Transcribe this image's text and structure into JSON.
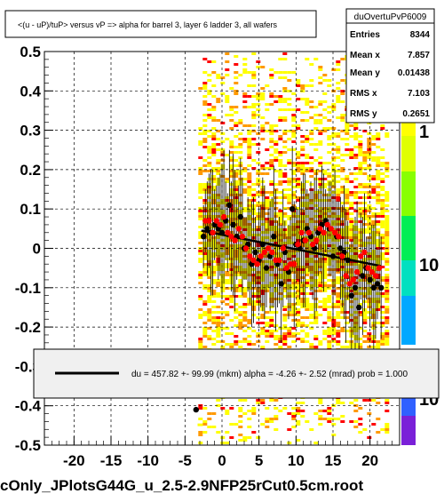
{
  "title": "<(u - uP)/tuP> versus   vP => alpha for barrel 3, layer 6 ladder 3, all wafers",
  "footer": "cOnly_JPlotsG44G_u_2.5-2.9NFP25rCut0.5cm.root",
  "stats": {
    "name": "duOvertuPvP6009",
    "rows": [
      {
        "label": "Entries",
        "value": "8344"
      },
      {
        "label": "Mean x",
        "value": "7.857"
      },
      {
        "label": "Mean y",
        "value": "0.01438"
      },
      {
        "label": "RMS x",
        "value": "7.103"
      },
      {
        "label": "RMS y",
        "value": "0.2651"
      }
    ]
  },
  "fit_legend": "du =  457.82 +- 99.99 (mkm) alpha =   -4.26 +-  2.52 (mrad) prob = 1.000",
  "palette_labels": [
    "1",
    "10",
    "10"
  ],
  "colors": {
    "black_points": "#000000",
    "red_points": "#ff0000",
    "fit_line": "#000000",
    "heat_low": "#ffff00",
    "heat_mid": "#ff9900",
    "heat_high": "#ff0000"
  },
  "chart_data": {
    "type": "scatter",
    "title": "<(u - uP)/tuP> versus   vP => alpha for barrel 3, layer 6 ladder 3, all wafers",
    "xlim": [
      -24,
      24
    ],
    "ylim": [
      -0.5,
      0.5
    ],
    "x_ticks": [
      "-20",
      "-15",
      "-10",
      "-5",
      "0",
      "5",
      "10",
      "15",
      "20"
    ],
    "y_ticks": [
      "0.5",
      "0.4",
      "0.3",
      "0.2",
      "0.1",
      "0",
      "-0.1",
      "-0.2",
      "-0.3",
      "-0.4",
      "-0.5"
    ],
    "fit_line": {
      "x": [
        -2.8,
        21.5
      ],
      "y": [
        0.045,
        -0.045
      ]
    },
    "series": [
      {
        "color": "black",
        "x": [
          -2.5,
          -2.0,
          -1.5,
          -1.0,
          -0.5,
          0.0,
          0.5,
          1.0,
          1.5,
          2.0,
          2.5,
          3.0,
          3.5,
          4.0,
          4.5,
          5.0,
          5.5,
          6.0,
          6.5,
          7.0,
          7.5,
          8.0,
          8.5,
          9.0,
          9.5,
          10.0,
          10.5,
          11.0,
          11.5,
          12.0,
          12.5,
          13.0,
          13.5,
          14.0,
          14.5,
          15.0,
          15.5,
          16.0,
          16.5,
          17.0,
          17.5,
          18.0,
          18.5,
          19.0,
          19.5,
          20.0,
          20.5,
          21.0,
          21.5,
          -3.5
        ],
        "y": [
          0.03,
          0.05,
          0.04,
          0.06,
          0.05,
          0.04,
          0.07,
          0.11,
          0.06,
          0.03,
          0.08,
          0.0,
          0.01,
          -0.04,
          -0.01,
          -0.03,
          0.01,
          -0.05,
          -0.02,
          0.03,
          -0.04,
          -0.09,
          -0.01,
          -0.06,
          0.1,
          0.01,
          0.0,
          0.02,
          0.05,
          0.03,
          0.0,
          0.04,
          0.06,
          0.07,
          0.05,
          -0.02,
          0.03,
          0.0,
          -0.01,
          -0.03,
          -0.12,
          -0.1,
          -0.15,
          -0.07,
          -0.05,
          -0.08,
          -0.1,
          -0.09,
          -0.1,
          -0.41
        ]
      },
      {
        "color": "red",
        "x": [
          -2.25,
          -1.75,
          -1.25,
          -0.75,
          -0.25,
          0.25,
          0.75,
          1.25,
          1.75,
          2.25,
          2.75,
          3.25,
          3.75,
          4.25,
          4.75,
          5.25,
          5.75,
          6.25,
          6.75,
          7.25,
          7.75,
          8.25,
          8.75,
          9.25,
          9.75,
          10.25,
          10.75,
          11.25,
          11.75,
          12.25,
          12.75,
          13.25,
          13.75,
          14.25,
          14.75,
          15.25,
          15.75,
          16.25,
          16.75,
          17.25,
          17.75,
          18.25,
          18.75,
          19.25,
          19.75,
          20.25,
          20.75,
          21.25
        ],
        "y": [
          0.07,
          0.07,
          0.04,
          0.07,
          0.06,
          0.08,
          0.04,
          0.03,
          0.02,
          0.05,
          0.03,
          0.0,
          -0.02,
          -0.03,
          -0.04,
          -0.02,
          -0.01,
          0.0,
          -0.01,
          -0.03,
          -0.03,
          0.0,
          -0.05,
          -0.04,
          -0.04,
          0.01,
          0.04,
          0.02,
          0.04,
          0.01,
          0.02,
          0.05,
          0.04,
          0.06,
          0.05,
          0.04,
          0.03,
          -0.02,
          -0.07,
          -0.09,
          -0.08,
          -0.06,
          -0.02,
          -0.01,
          -0.05,
          -0.06,
          -0.07,
          -0.05
        ]
      }
    ]
  }
}
